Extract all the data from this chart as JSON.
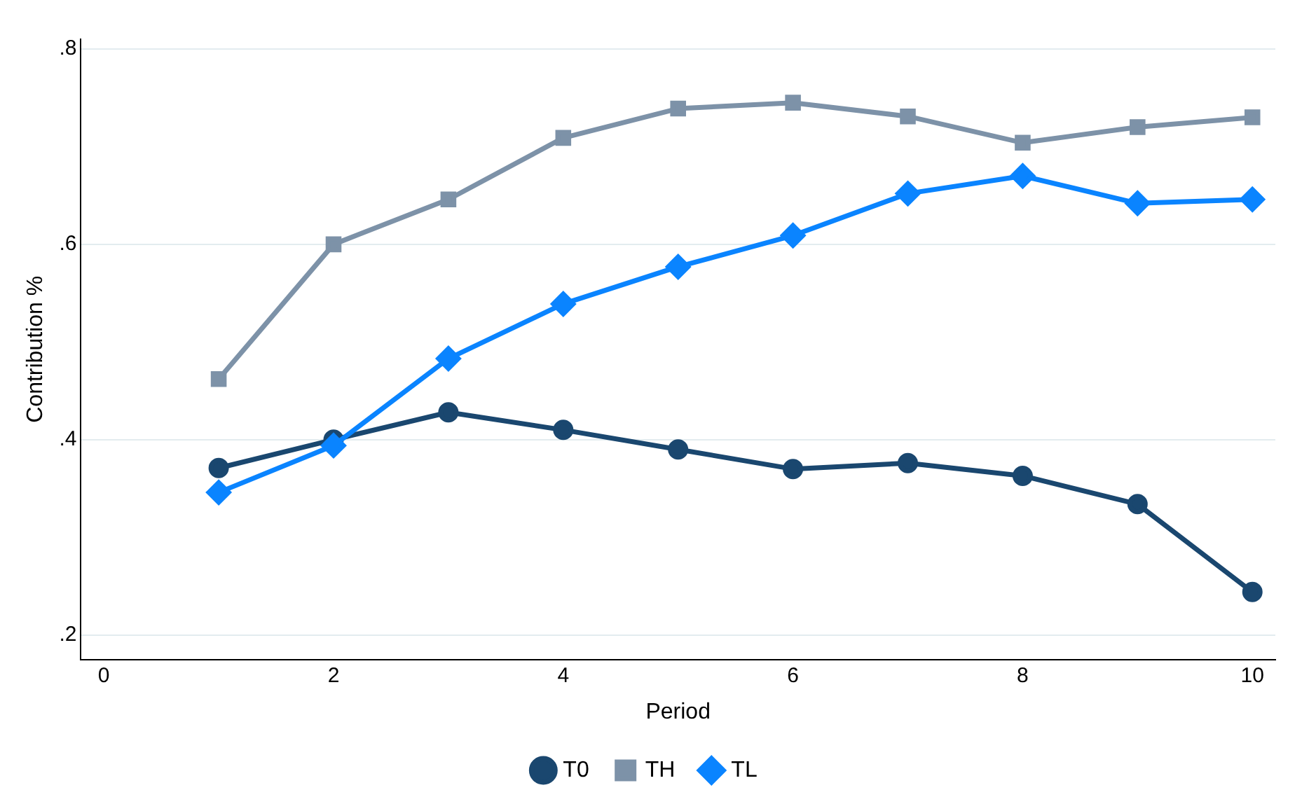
{
  "chart_data": {
    "type": "line",
    "xlabel": "Period",
    "ylabel": "Contribution %",
    "x": [
      1,
      2,
      3,
      4,
      5,
      6,
      7,
      8,
      9,
      10
    ],
    "series": [
      {
        "name": "T0",
        "color": "#1a476f",
        "marker": "circle",
        "values": [
          0.371,
          0.4,
          0.428,
          0.41,
          0.39,
          0.37,
          0.376,
          0.363,
          0.334,
          0.244
        ]
      },
      {
        "name": "TH",
        "color": "#7d92a8",
        "marker": "square",
        "values": [
          0.462,
          0.6,
          0.646,
          0.709,
          0.739,
          0.745,
          0.731,
          0.704,
          0.72,
          0.73
        ]
      },
      {
        "name": "TL",
        "color": "#0a84ff",
        "marker": "diamond",
        "values": [
          0.346,
          0.394,
          0.483,
          0.539,
          0.577,
          0.609,
          0.652,
          0.67,
          0.642,
          0.646
        ]
      }
    ],
    "xlim": [
      -0.2,
      10.2
    ],
    "xticks": [
      0,
      2,
      4,
      6,
      8,
      10
    ],
    "ylim": [
      0.175,
      0.81
    ],
    "yticks": [
      {
        "value": 0.2,
        "label": ".2"
      },
      {
        "value": 0.4,
        "label": ".4"
      },
      {
        "value": 0.6,
        "label": ".6"
      },
      {
        "value": 0.8,
        "label": ".8"
      }
    ],
    "grid": "y",
    "legend": "bottom",
    "line_style": "solid"
  }
}
